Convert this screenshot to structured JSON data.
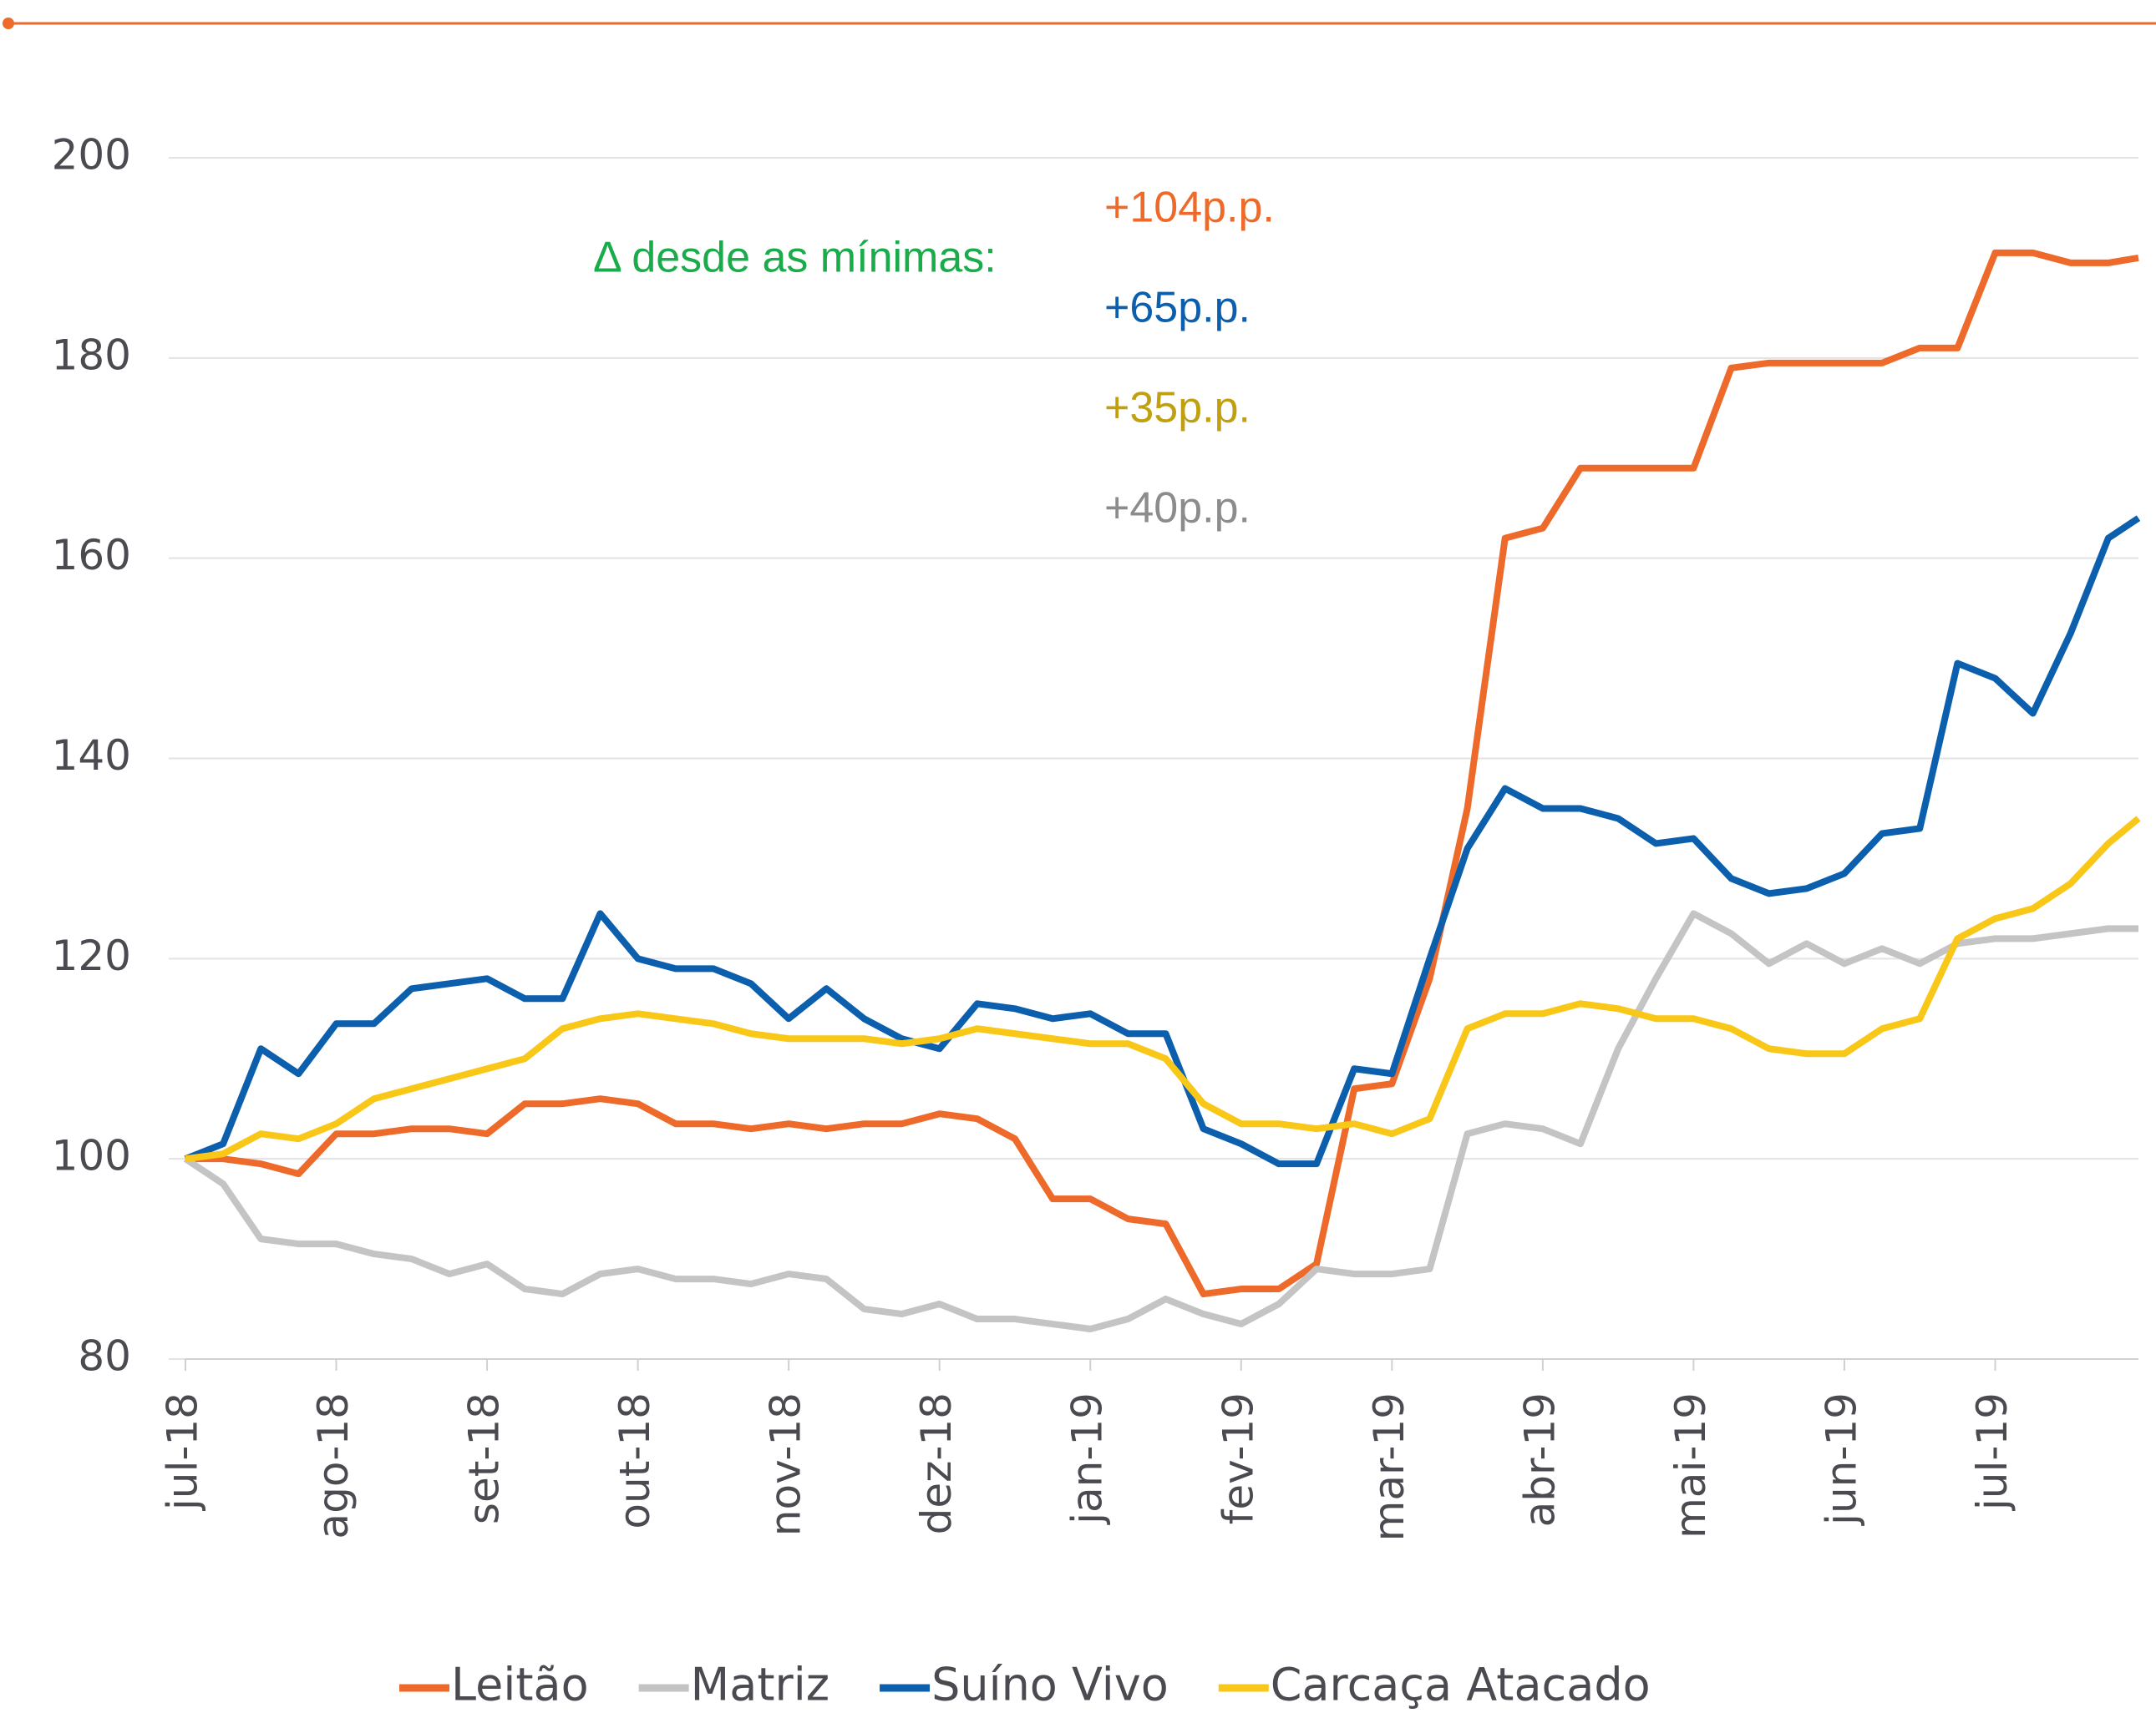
{
  "chart_data": {
    "type": "line",
    "x": [
      0,
      0.25,
      0.5,
      0.75,
      1,
      1.25,
      1.5,
      1.75,
      2,
      2.25,
      2.5,
      2.75,
      3,
      3.25,
      3.5,
      3.75,
      4,
      4.25,
      4.5,
      4.75,
      5,
      5.25,
      5.5,
      5.75,
      6,
      6.25,
      6.5,
      6.75,
      7,
      7.25,
      7.5,
      7.75,
      8,
      8.25,
      8.5,
      8.75,
      9,
      9.25,
      9.5,
      9.75,
      10,
      10.25,
      10.5,
      10.75,
      11,
      11.25,
      11.5,
      11.75,
      12,
      12.25,
      12.5,
      12.75,
      12.95
    ],
    "xlim": [
      0,
      12.95
    ],
    "xticks": [
      {
        "value": 0,
        "label": "jul-18"
      },
      {
        "value": 1,
        "label": "ago-18"
      },
      {
        "value": 2,
        "label": "set-18"
      },
      {
        "value": 3,
        "label": "out-18"
      },
      {
        "value": 4,
        "label": "nov-18"
      },
      {
        "value": 5,
        "label": "dez-18"
      },
      {
        "value": 6,
        "label": "jan-19"
      },
      {
        "value": 7,
        "label": "fev-19"
      },
      {
        "value": 8,
        "label": "mar-19"
      },
      {
        "value": 9,
        "label": "abr-19"
      },
      {
        "value": 10,
        "label": "mai-19"
      },
      {
        "value": 11,
        "label": "jun-19"
      },
      {
        "value": 12,
        "label": "jul-19"
      }
    ],
    "ylim": [
      80,
      200
    ],
    "yticks": [
      80,
      100,
      120,
      140,
      160,
      180,
      200
    ],
    "grid": true,
    "series": [
      {
        "name": "Leitão",
        "color": "#ed6a2a",
        "values": [
          100,
          100,
          99.5,
          98.5,
          102.5,
          102.5,
          103,
          103,
          102.5,
          105.5,
          105.5,
          106,
          105.5,
          103.5,
          103.5,
          103,
          103.5,
          103,
          103.5,
          103.5,
          104.5,
          104,
          102,
          96,
          96,
          94,
          93.5,
          86.5,
          87,
          87,
          89.5,
          107,
          107.5,
          118,
          135,
          162,
          163,
          169,
          169,
          169,
          169,
          179,
          179.5,
          179.5,
          179.5,
          179.5,
          181,
          181,
          190.5,
          190.5,
          189.5,
          189.5,
          190
        ]
      },
      {
        "name": "Matriz",
        "color": "#c4c4c4",
        "values": [
          100,
          97.5,
          92,
          91.5,
          91.5,
          90.5,
          90,
          88.5,
          89.5,
          87,
          86.5,
          88.5,
          89,
          88,
          88,
          87.5,
          88.5,
          88,
          85,
          84.5,
          85.5,
          84,
          84,
          83.5,
          83,
          84,
          86,
          84.5,
          83.5,
          85.5,
          89,
          88.5,
          88.5,
          89,
          102.5,
          103.5,
          103,
          101.5,
          111,
          118,
          124.5,
          122.5,
          119.5,
          121.5,
          119.5,
          121,
          119.5,
          121.5,
          122,
          122,
          122.5,
          123,
          123
        ]
      },
      {
        "name": "Suíno Vivo",
        "color": "#0b5fad",
        "values": [
          100,
          101.5,
          111,
          108.5,
          113.5,
          113.5,
          117,
          117.5,
          118,
          116,
          116,
          124.5,
          120,
          119,
          119,
          117.5,
          114,
          117,
          114,
          112,
          111,
          115.5,
          115,
          114,
          114.5,
          112.5,
          112.5,
          103,
          101.5,
          99.5,
          99.5,
          109,
          108.5,
          120,
          131,
          137,
          135,
          135,
          134,
          131.5,
          132,
          128,
          126.5,
          127,
          128.5,
          132.5,
          133,
          149.5,
          148,
          144.5,
          152.5,
          162,
          164
        ]
      },
      {
        "name": "Carcaça Atacado",
        "color": "#f8c718",
        "values": [
          100,
          100.5,
          102.5,
          102,
          103.5,
          106,
          107,
          108,
          109,
          110,
          113,
          114,
          114.5,
          114,
          113.5,
          112.5,
          112,
          112,
          112,
          111.5,
          112,
          113,
          112.5,
          112,
          111.5,
          111.5,
          110,
          105.5,
          103.5,
          103.5,
          103,
          103.5,
          102.5,
          104,
          113,
          114.5,
          114.5,
          115.5,
          115,
          114,
          114,
          113,
          111,
          110.5,
          110.5,
          113,
          114,
          122,
          124,
          125,
          127.5,
          131.5,
          134
        ]
      }
    ],
    "annotations": [
      {
        "text": "Δ desde as mínimas:",
        "color": "#1aab4b"
      },
      {
        "text": "+104p.p.",
        "color": "#ed6a2a"
      },
      {
        "text": "+65p.p.",
        "color": "#0b5fad"
      },
      {
        "text": "+35p.p.",
        "color": "#c0a010"
      },
      {
        "text": "+40p.p.",
        "color": "#8c8c8c"
      }
    ]
  }
}
